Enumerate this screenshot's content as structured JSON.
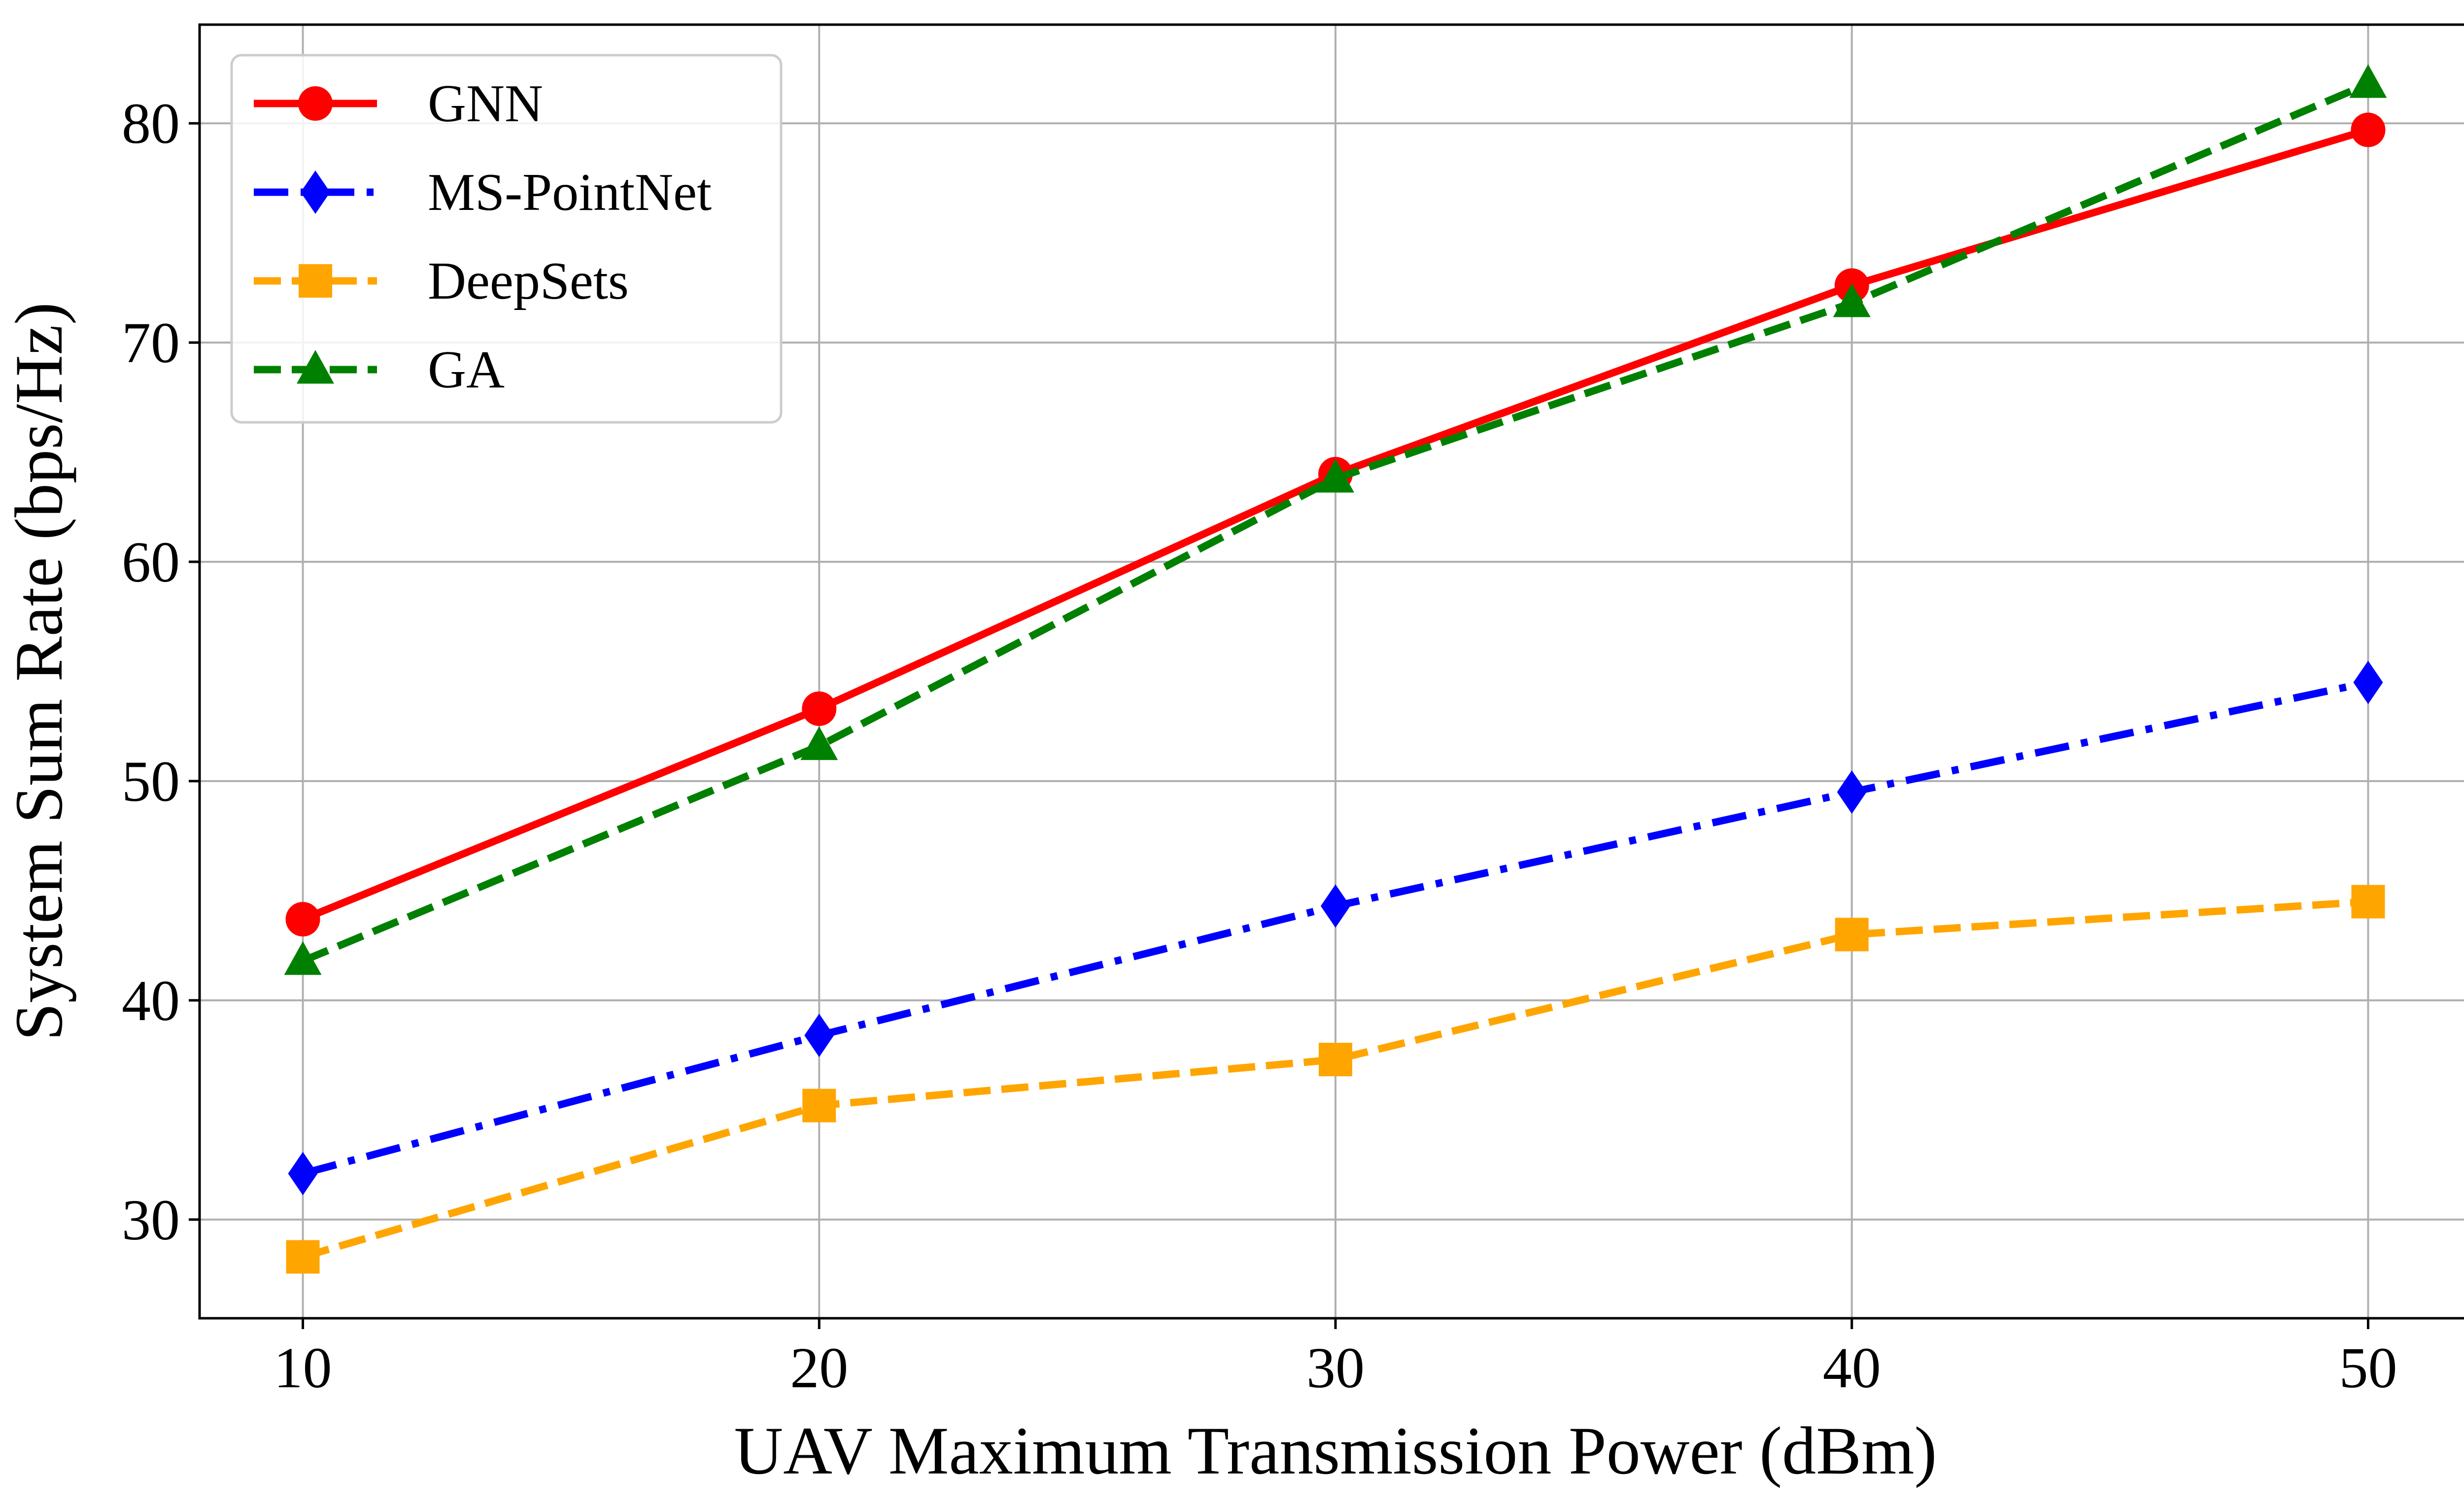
{
  "chart_data": {
    "type": "line",
    "title": "",
    "xlabel": "UAV Maximum Transmission Power (dBm)",
    "ylabel": "System Sum Rate (bps/Hz)",
    "x": [
      10,
      20,
      30,
      40,
      50
    ],
    "xticks": [
      10,
      20,
      30,
      40,
      50
    ],
    "yticks": [
      30,
      40,
      50,
      60,
      70,
      80
    ],
    "xlim": [
      8,
      52
    ],
    "ylim": [
      25.5,
      84.5
    ],
    "grid": true,
    "legend_position": "top-left",
    "series": [
      {
        "name": "GNN",
        "values": [
          43.7,
          53.3,
          64.0,
          72.6,
          79.7
        ],
        "color": "#ff0000",
        "linestyle": "solid",
        "marker": "circle"
      },
      {
        "name": "MS-PointNet",
        "values": [
          32.1,
          38.4,
          44.3,
          49.5,
          54.5
        ],
        "color": "#0000ff",
        "linestyle": "dashdot",
        "marker": "diamond"
      },
      {
        "name": "DeepSets",
        "values": [
          28.3,
          35.2,
          37.3,
          43.0,
          44.5
        ],
        "color": "#ffa500",
        "linestyle": "dashed",
        "marker": "square"
      },
      {
        "name": "GA",
        "values": [
          41.8,
          51.6,
          63.8,
          71.8,
          81.8
        ],
        "color": "#008000",
        "linestyle": "dashed",
        "marker": "triangle"
      }
    ]
  }
}
